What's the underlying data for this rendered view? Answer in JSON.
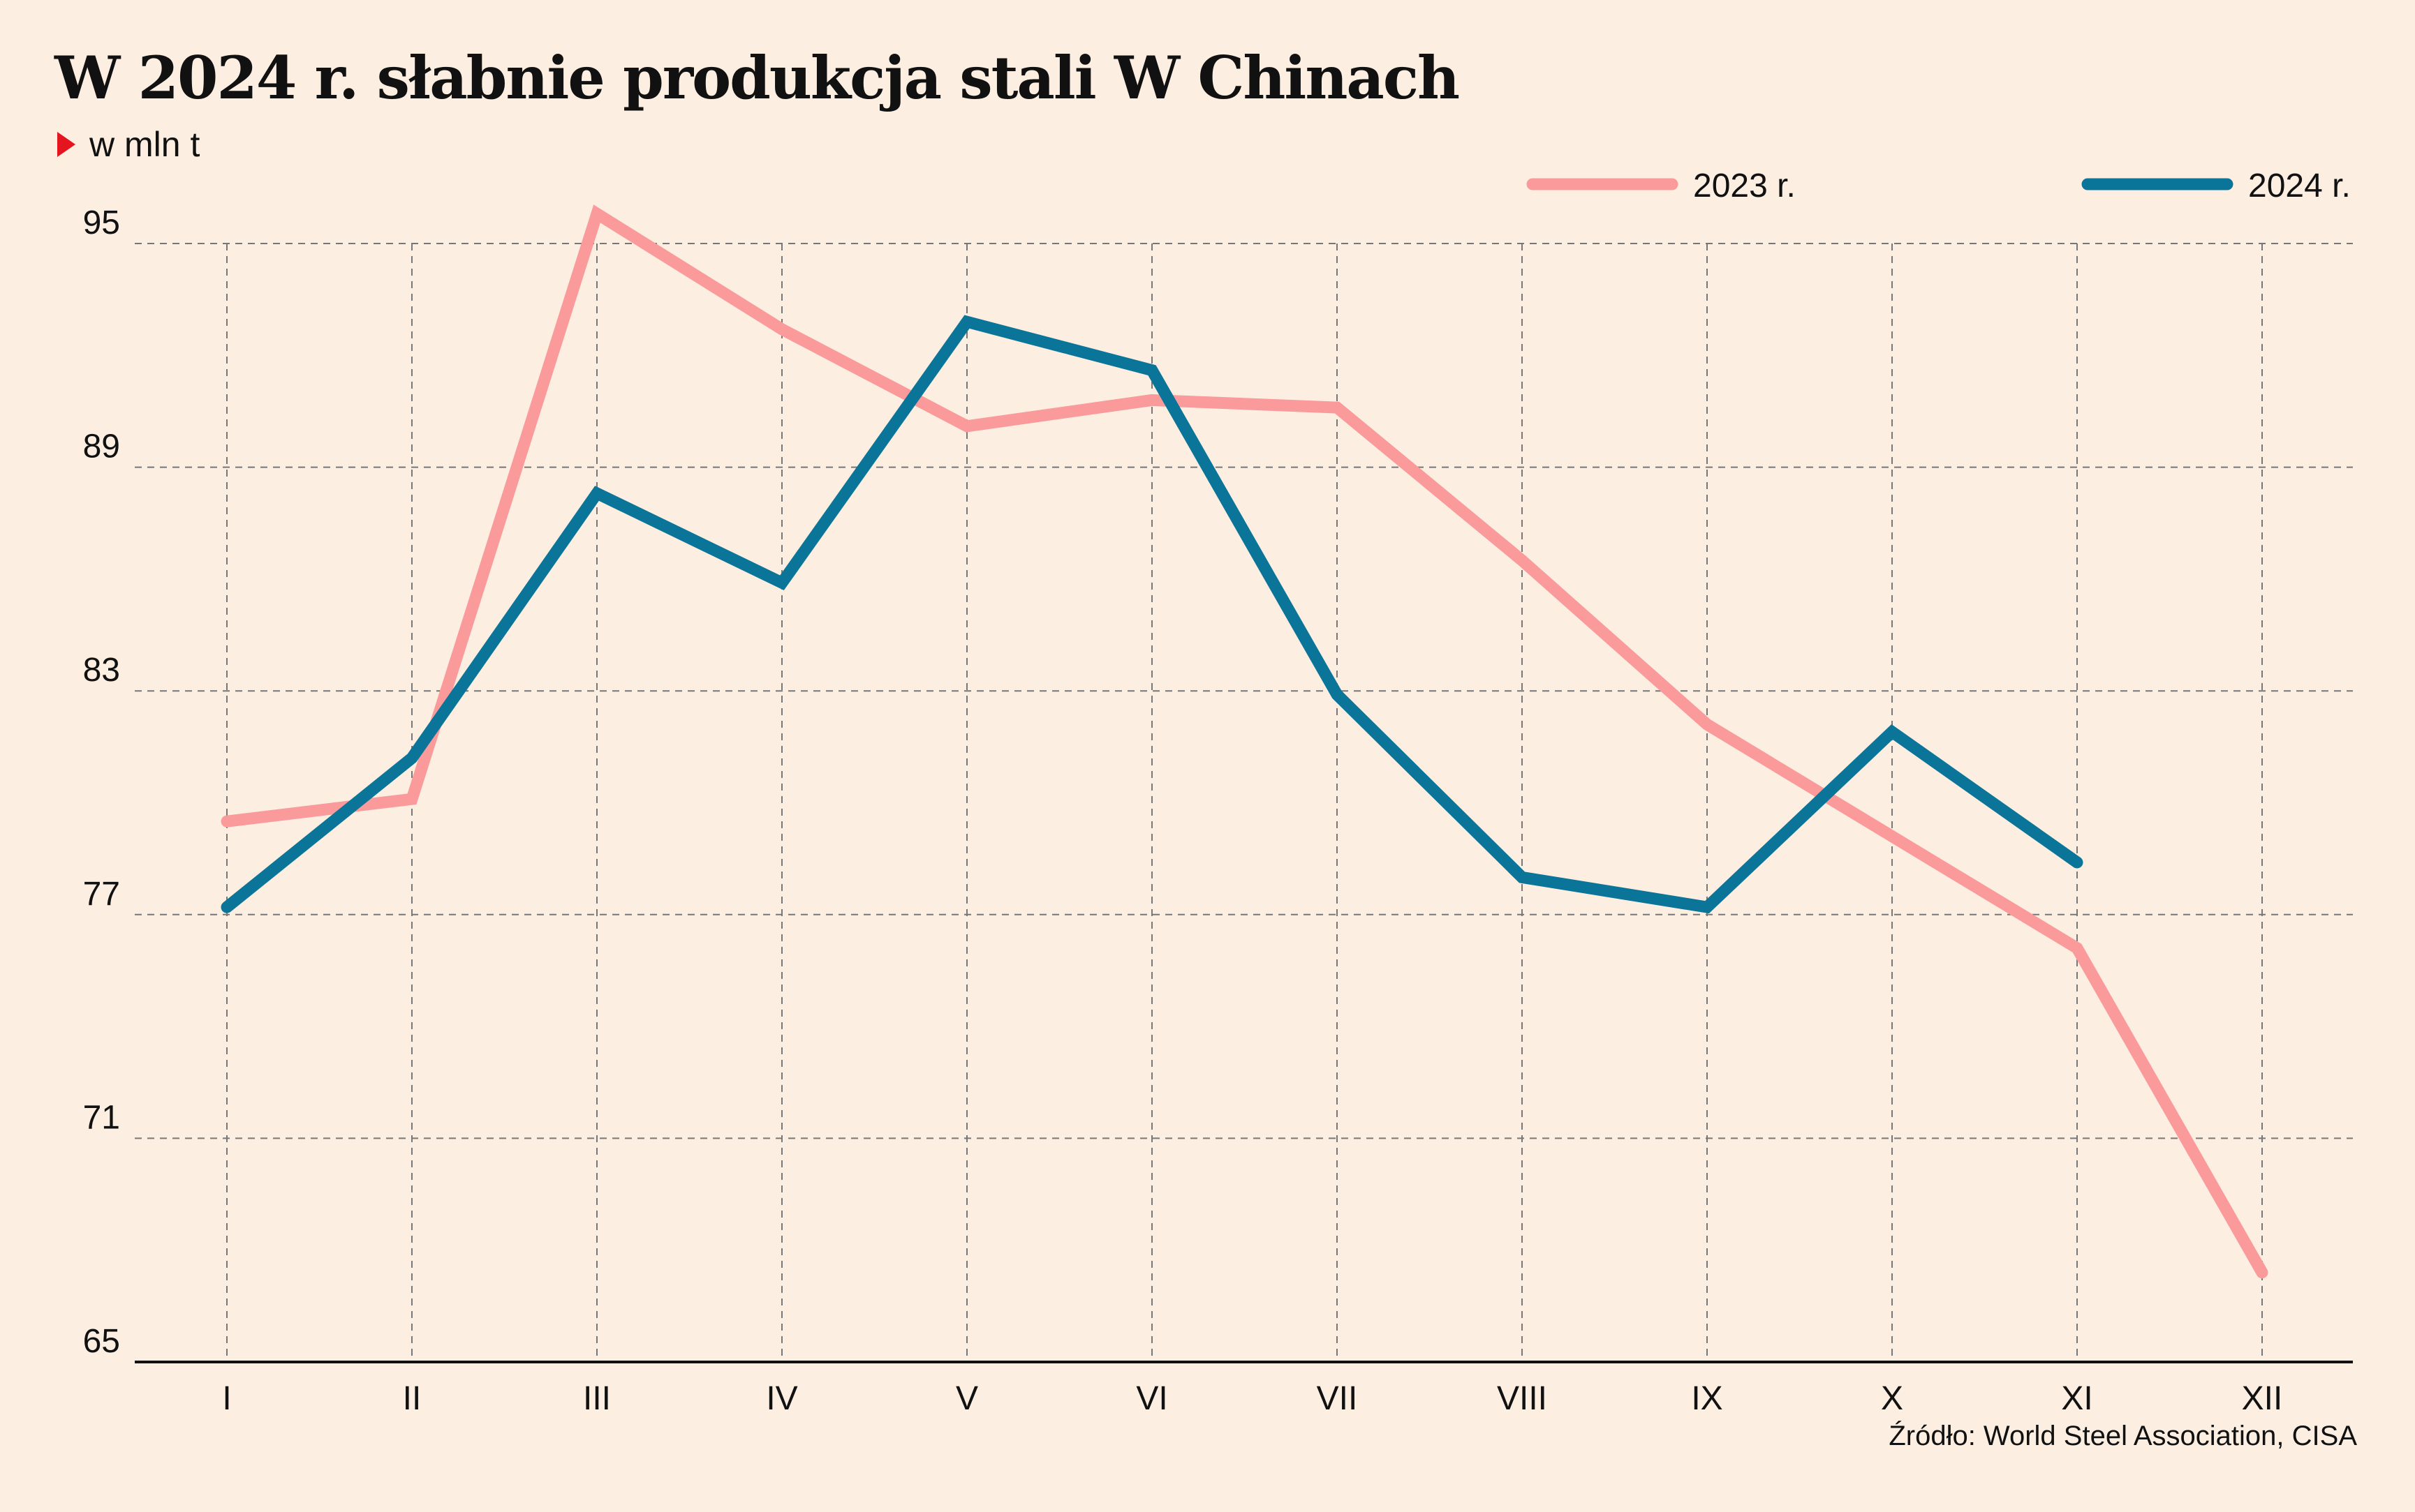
{
  "chart_data": {
    "type": "line",
    "title": "W 2024 r. słabnie produkcja stali W Chinach",
    "unit_label": "w mln t",
    "source": "Źródło: World Steel Association, CISA",
    "categories": [
      "I",
      "II",
      "III",
      "IV",
      "V",
      "VI",
      "VII",
      "VIII",
      "IX",
      "X",
      "XI",
      "XII"
    ],
    "y_ticks": [
      65,
      71,
      77,
      83,
      89,
      95
    ],
    "ylim": [
      65,
      95
    ],
    "grid": true,
    "legend_position": "top-right",
    "series": [
      {
        "name": "2023 r.",
        "color": "#fb9a9a",
        "values": [
          79.5,
          80.1,
          95.8,
          92.7,
          90.1,
          90.8,
          90.6,
          86.5,
          82.1,
          79.1,
          76.1,
          67.4
        ]
      },
      {
        "name": "2024 r.",
        "color": "#0b7599",
        "values": [
          77.2,
          81.2,
          88.3,
          85.9,
          92.9,
          91.6,
          82.9,
          78.0,
          77.2,
          81.9,
          78.4,
          null
        ]
      }
    ]
  }
}
